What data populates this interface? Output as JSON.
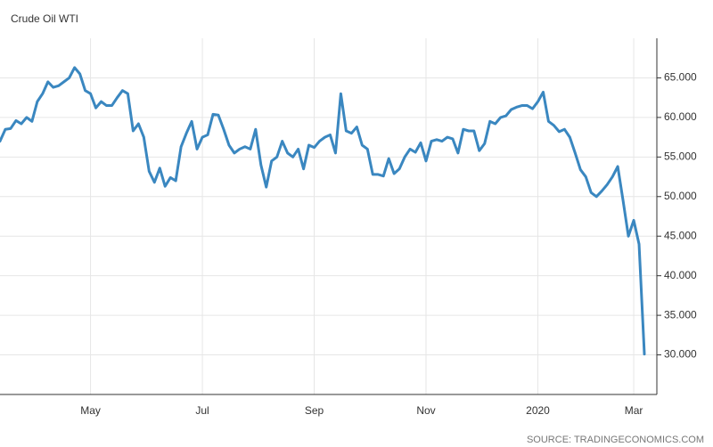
{
  "chart_data": {
    "type": "line",
    "title": "Crude Oil WTI",
    "source": "SOURCE: TRADINGECONOMICS.COM",
    "categories": [
      null,
      null,
      null,
      null,
      null,
      null,
      null,
      null,
      null,
      null,
      null,
      null,
      null,
      null,
      null,
      null,
      null,
      "May",
      null,
      null,
      null,
      null,
      null,
      null,
      null,
      null,
      null,
      null,
      null,
      null,
      null,
      null,
      null,
      null,
      null,
      null,
      null,
      null,
      "Jul",
      null,
      null,
      null,
      null,
      null,
      null,
      null,
      null,
      null,
      null,
      null,
      null,
      null,
      null,
      null,
      null,
      null,
      null,
      null,
      null,
      "Sep",
      null,
      null,
      null,
      null,
      null,
      null,
      null,
      null,
      null,
      null,
      null,
      null,
      null,
      null,
      null,
      null,
      null,
      null,
      null,
      null,
      "Nov",
      null,
      null,
      null,
      null,
      null,
      null,
      null,
      null,
      null,
      null,
      null,
      null,
      null,
      null,
      null,
      null,
      null,
      null,
      null,
      null,
      "2020",
      null,
      null,
      null,
      null,
      null,
      null,
      null,
      null,
      null,
      null,
      null,
      null,
      null,
      null,
      null,
      null,
      null,
      "Mar",
      null,
      null
    ],
    "values": [
      57,
      58.5,
      58.6,
      59.6,
      59.2,
      60.0,
      59.5,
      62.0,
      63.0,
      64.5,
      63.8,
      64.0,
      64.5,
      65.0,
      66.3,
      65.5,
      63.4,
      63.0,
      61.2,
      62.0,
      61.5,
      61.5,
      62.5,
      63.4,
      63.0,
      58.3,
      59.2,
      57.5,
      53.2,
      51.8,
      53.6,
      51.3,
      52.4,
      52.0,
      56.3,
      58.0,
      59.5,
      56.0,
      57.5,
      57.8,
      60.4,
      60.3,
      58.5,
      56.5,
      55.5,
      56.0,
      56.3,
      56.0,
      58.5,
      54.0,
      51.2,
      54.5,
      55.0,
      57.0,
      55.5,
      55.0,
      56.0,
      53.5,
      56.5,
      56.2,
      57.0,
      57.5,
      57.8,
      55.5,
      63.0,
      58.3,
      58.0,
      58.8,
      56.5,
      56.0,
      52.8,
      52.8,
      52.6,
      54.8,
      52.9,
      53.5,
      55.0,
      56.0,
      55.6,
      56.8,
      54.5,
      57.0,
      57.2,
      57.0,
      57.5,
      57.3,
      55.5,
      58.5,
      58.3,
      58.3,
      55.8,
      56.7,
      59.5,
      59.2,
      60.0,
      60.2,
      61.0,
      61.3,
      61.5,
      61.5,
      61.1,
      62.0,
      63.2,
      59.5,
      59.0,
      58.2,
      58.5,
      57.5,
      55.5,
      53.4,
      52.5,
      50.5,
      50.0,
      50.7,
      51.5,
      52.5,
      53.8,
      49.5,
      45.0,
      47.0,
      44.0,
      30.1
    ],
    "color": "#3a87c0",
    "ylim": [
      25,
      70
    ],
    "yticks": [
      {
        "value": 30,
        "label": "30.000"
      },
      {
        "value": 35,
        "label": "35.000"
      },
      {
        "value": 40,
        "label": "40.000"
      },
      {
        "value": 45,
        "label": "45.000"
      },
      {
        "value": 50,
        "label": "50.000"
      },
      {
        "value": 55,
        "label": "55.000"
      },
      {
        "value": 60,
        "label": "60.000"
      },
      {
        "value": 65,
        "label": "65.000"
      }
    ],
    "grid": true
  }
}
